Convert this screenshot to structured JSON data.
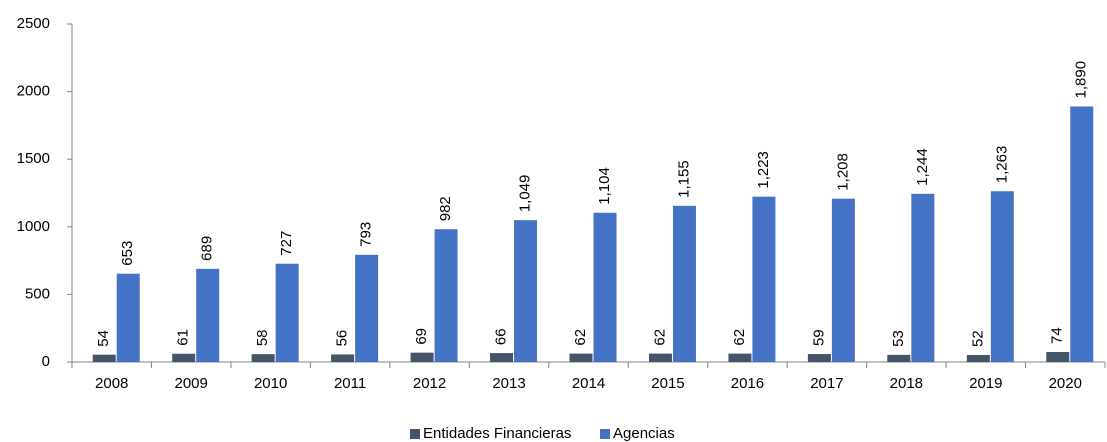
{
  "chart_data": {
    "type": "bar",
    "categories": [
      "2008",
      "2009",
      "2010",
      "2011",
      "2012",
      "2013",
      "2014",
      "2015",
      "2016",
      "2017",
      "2018",
      "2019",
      "2020"
    ],
    "series": [
      {
        "name": "Entidades Financieras",
        "color": "#44546a",
        "values": [
          54,
          61,
          58,
          56,
          69,
          66,
          62,
          62,
          62,
          59,
          53,
          52,
          74
        ]
      },
      {
        "name": "Agencias",
        "color": "#4472c4",
        "values": [
          653,
          689,
          727,
          793,
          982,
          1049,
          1104,
          1155,
          1223,
          1208,
          1244,
          1263,
          1890
        ],
        "value_labels": [
          "653",
          "689",
          "727",
          "793",
          "982",
          "1,049",
          "1,104",
          "1,155",
          "1,223",
          "1,208",
          "1,244",
          "1,263",
          "1,890"
        ]
      }
    ],
    "ylim": [
      0,
      2500
    ],
    "yticks": [
      0,
      500,
      1000,
      1500,
      2000,
      2500
    ],
    "grid": false,
    "legend": "bottom"
  }
}
